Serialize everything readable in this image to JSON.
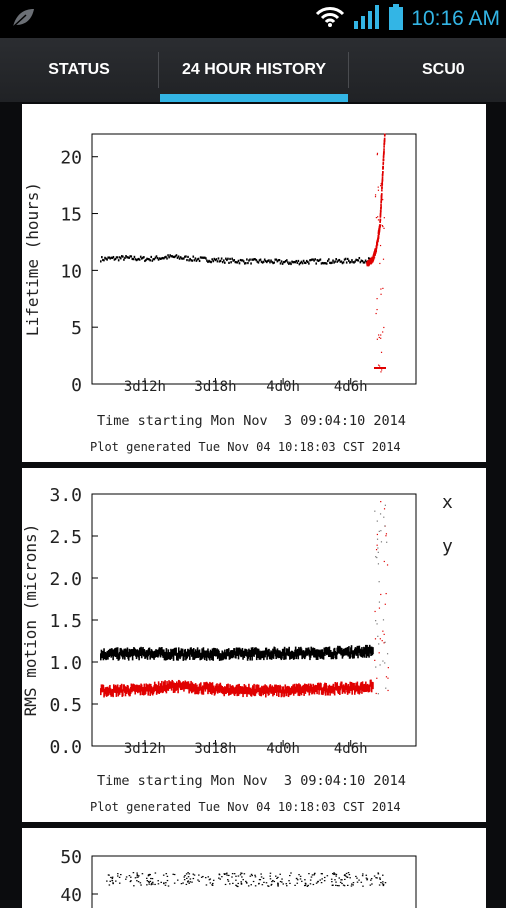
{
  "status_bar": {
    "time": "10:16 AM",
    "icons": [
      "leaf-icon",
      "wifi-icon",
      "signal-icon",
      "battery-icon"
    ]
  },
  "tabs": [
    {
      "label": "STATUS",
      "selected": false
    },
    {
      "label": "24 HOUR HISTORY",
      "selected": true
    },
    {
      "label": "SCU0",
      "selected": false
    }
  ],
  "colors": {
    "accent": "#33b5e5",
    "series_black": "#000000",
    "series_red": "#e00000"
  },
  "chart_data": [
    {
      "type": "scatter",
      "ylabel": "Lifetime (hours)",
      "xlabel": "Time starting Mon Nov  3 09:04:10 2014",
      "footer": "Plot generated Tue Nov 04 10:18:03 CST 2014",
      "yticks": [
        "0",
        "5",
        "10",
        "15",
        "20"
      ],
      "xticks": [
        "3d12h",
        "3d18h",
        "4d0h",
        "4d6h"
      ],
      "ylim": [
        0,
        22
      ],
      "series": [
        {
          "color": "#000000",
          "x": [
            0,
            2,
            4,
            6,
            8,
            10,
            12,
            14,
            16,
            18,
            20,
            22,
            23
          ],
          "y": [
            11,
            11.1,
            11.0,
            11.2,
            11.0,
            10.9,
            10.8,
            10.8,
            10.7,
            10.8,
            10.8,
            10.9,
            10.9
          ]
        },
        {
          "color": "#e00000",
          "x": [
            22.5,
            23,
            23.3,
            23.6,
            23.8,
            24
          ],
          "y": [
            10.5,
            11,
            12,
            14,
            18,
            22
          ]
        }
      ]
    },
    {
      "type": "scatter",
      "ylabel": "RMS motion (microns)",
      "xlabel": "Time starting Mon Nov  3 09:04:10 2014",
      "footer": "Plot generated Tue Nov 04 10:18:03 CST 2014",
      "yticks": [
        "0.0",
        "0.5",
        "1.0",
        "1.5",
        "2.0",
        "2.5",
        "3.0"
      ],
      "xticks": [
        "3d12h",
        "3d18h",
        "4d0h",
        "4d6h"
      ],
      "ylim": [
        0,
        3
      ],
      "legend": [
        "x",
        "y"
      ],
      "series": [
        {
          "name": "x",
          "color": "#000000",
          "x": [
            0,
            2,
            4,
            6,
            8,
            10,
            12,
            14,
            16,
            18,
            20,
            22,
            23
          ],
          "y": [
            1.1,
            1.1,
            1.11,
            1.1,
            1.1,
            1.1,
            1.1,
            1.11,
            1.11,
            1.11,
            1.12,
            1.13,
            1.14
          ]
        },
        {
          "name": "y",
          "color": "#e00000",
          "x": [
            0,
            2,
            4,
            6,
            8,
            10,
            12,
            14,
            16,
            18,
            20,
            22,
            23
          ],
          "y": [
            0.66,
            0.67,
            0.68,
            0.72,
            0.7,
            0.68,
            0.67,
            0.66,
            0.67,
            0.68,
            0.69,
            0.7,
            0.72
          ]
        }
      ]
    },
    {
      "type": "scatter",
      "yticks": [
        "40",
        "50"
      ],
      "partial": true
    }
  ]
}
